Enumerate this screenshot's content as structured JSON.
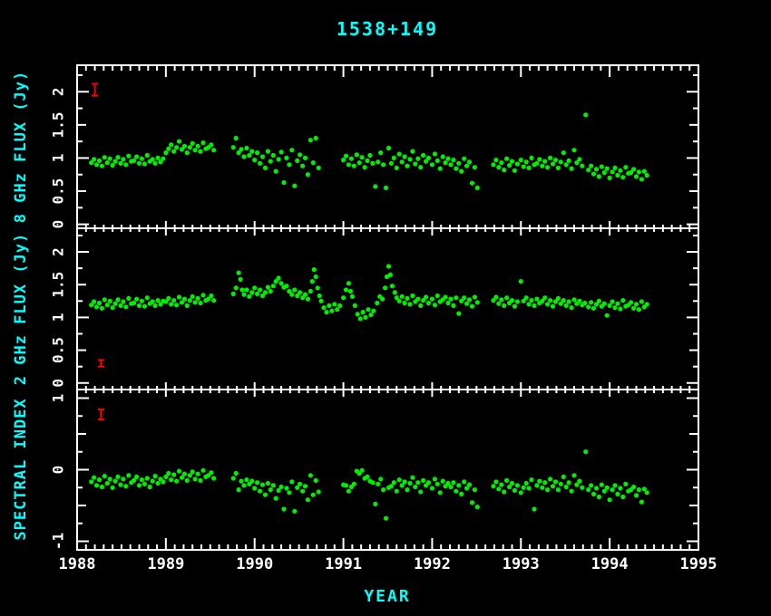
{
  "colors": {
    "background": "#000000",
    "frame": "#ffffff",
    "tick_text": "#ffffff",
    "label_text": "#00ffff",
    "point": "#00ee00",
    "error_bar": "#ff0000"
  },
  "chart_data": {
    "type": "scatter",
    "title": "1538+149",
    "xlabel": "YEAR",
    "xlim": [
      1988,
      1995
    ],
    "x_minor_step": 0.1,
    "x_tick_years": [
      1988,
      1989,
      1990,
      1991,
      1992,
      1993,
      1994,
      1995
    ],
    "x_tick_labels": [
      "1988",
      "1989",
      "1990",
      "1991",
      "1992",
      "1993",
      "1994",
      "1995"
    ],
    "time_grids": {
      "grid_a": [
        1988.16,
        1988.19,
        1988.22,
        1988.25,
        1988.28,
        1988.31,
        1988.34,
        1988.37,
        1988.4,
        1988.43,
        1988.46,
        1988.49,
        1988.52,
        1988.55,
        1988.58,
        1988.61,
        1988.64,
        1988.67,
        1988.7,
        1988.73,
        1988.76,
        1988.79,
        1988.82,
        1988.85,
        1988.88,
        1988.91,
        1988.94,
        1988.97,
        1989.0,
        1989.03,
        1989.06,
        1989.09,
        1989.12,
        1989.15,
        1989.18,
        1989.21,
        1989.24,
        1989.27,
        1989.3,
        1989.33,
        1989.36,
        1989.39,
        1989.42,
        1989.45,
        1989.48,
        1989.51,
        1989.54,
        1989.76,
        1989.79,
        1989.82,
        1989.85,
        1989.88,
        1989.91,
        1989.94,
        1989.97,
        1990.0,
        1990.03,
        1990.06,
        1990.09,
        1990.12,
        1990.15,
        1990.18,
        1990.21,
        1990.24,
        1990.27,
        1990.3,
        1990.33,
        1990.36,
        1990.39,
        1990.42,
        1990.45,
        1990.48,
        1990.51,
        1990.54,
        1990.57,
        1990.6,
        1990.63,
        1990.66,
        1990.69,
        1990.72,
        1991.0,
        1991.03,
        1991.06,
        1991.09,
        1991.12,
        1991.15,
        1991.18,
        1991.21,
        1991.24,
        1991.27,
        1991.3,
        1991.33,
        1991.36,
        1991.39,
        1991.42,
        1991.45,
        1991.48,
        1991.51,
        1991.54,
        1991.57,
        1991.6,
        1991.63,
        1991.66,
        1991.69,
        1991.72,
        1991.75,
        1991.78,
        1991.81,
        1991.84,
        1991.87,
        1991.9,
        1991.93,
        1991.96,
        1992.0,
        1992.03,
        1992.06,
        1992.09,
        1992.12,
        1992.15,
        1992.18,
        1992.21,
        1992.24,
        1992.27,
        1992.3,
        1992.33,
        1992.36,
        1992.39,
        1992.42,
        1992.45,
        1992.48,
        1992.51,
        1992.69,
        1992.72,
        1992.75,
        1992.78,
        1992.81,
        1992.84,
        1992.87,
        1992.9,
        1992.93,
        1992.96,
        1993.0,
        1993.03,
        1993.06,
        1993.09,
        1993.12,
        1993.15,
        1993.18,
        1993.21,
        1993.24,
        1993.27,
        1993.3,
        1993.33,
        1993.36,
        1993.39,
        1993.42,
        1993.45,
        1993.48,
        1993.51,
        1993.54,
        1993.57,
        1993.6,
        1993.63,
        1993.66,
        1993.69,
        1993.73,
        1993.76,
        1993.79,
        1993.82,
        1993.85,
        1993.88,
        1993.91,
        1993.94,
        1993.97,
        1994.0,
        1994.03,
        1994.06,
        1994.09,
        1994.12,
        1994.15,
        1994.18,
        1994.21,
        1994.24,
        1994.27,
        1994.3,
        1994.33,
        1994.36,
        1994.39,
        1994.42
      ],
      "grid_b": [
        1988.16,
        1988.19,
        1988.22,
        1988.25,
        1988.28,
        1988.31,
        1988.34,
        1988.37,
        1988.4,
        1988.43,
        1988.46,
        1988.49,
        1988.52,
        1988.55,
        1988.58,
        1988.61,
        1988.64,
        1988.67,
        1988.7,
        1988.73,
        1988.76,
        1988.79,
        1988.82,
        1988.85,
        1988.88,
        1988.91,
        1988.94,
        1988.97,
        1989.0,
        1989.03,
        1989.06,
        1989.09,
        1989.12,
        1989.15,
        1989.18,
        1989.21,
        1989.24,
        1989.27,
        1989.3,
        1989.33,
        1989.36,
        1989.39,
        1989.42,
        1989.45,
        1989.48,
        1989.51,
        1989.54,
        1989.76,
        1989.79,
        1989.82,
        1989.84,
        1989.86,
        1989.88,
        1989.91,
        1989.94,
        1989.97,
        1990.0,
        1990.03,
        1990.06,
        1990.09,
        1990.12,
        1990.15,
        1990.18,
        1990.21,
        1990.24,
        1990.27,
        1990.3,
        1990.33,
        1990.36,
        1990.39,
        1990.42,
        1990.45,
        1990.48,
        1990.51,
        1990.54,
        1990.57,
        1990.6,
        1990.63,
        1990.65,
        1990.67,
        1990.69,
        1990.71,
        1990.73,
        1990.75,
        1990.78,
        1990.81,
        1990.84,
        1990.87,
        1990.9,
        1990.93,
        1990.96,
        1991.0,
        1991.03,
        1991.06,
        1991.08,
        1991.1,
        1991.13,
        1991.16,
        1991.19,
        1991.22,
        1991.25,
        1991.28,
        1991.31,
        1991.34,
        1991.38,
        1991.41,
        1991.44,
        1991.47,
        1991.49,
        1991.51,
        1991.53,
        1991.55,
        1991.58,
        1991.6,
        1991.63,
        1991.66,
        1991.69,
        1991.72,
        1991.75,
        1991.78,
        1991.81,
        1991.84,
        1991.87,
        1991.9,
        1991.93,
        1991.96,
        1992.0,
        1992.03,
        1992.06,
        1992.09,
        1992.12,
        1992.15,
        1992.18,
        1992.21,
        1992.24,
        1992.27,
        1992.3,
        1992.33,
        1992.36,
        1992.39,
        1992.42,
        1992.45,
        1992.48,
        1992.51,
        1992.69,
        1992.72,
        1992.75,
        1992.78,
        1992.81,
        1992.84,
        1992.87,
        1992.9,
        1992.93,
        1992.96,
        1993.0,
        1993.03,
        1993.06,
        1993.09,
        1993.12,
        1993.15,
        1993.18,
        1993.21,
        1993.24,
        1993.27,
        1993.3,
        1993.33,
        1993.36,
        1993.39,
        1993.42,
        1993.45,
        1993.48,
        1993.51,
        1993.54,
        1993.57,
        1993.6,
        1993.63,
        1993.66,
        1993.69,
        1993.72,
        1993.76,
        1993.79,
        1993.82,
        1993.85,
        1993.88,
        1993.91,
        1993.94,
        1993.97,
        1994.0,
        1994.03,
        1994.06,
        1994.09,
        1994.12,
        1994.15,
        1994.18,
        1994.21,
        1994.24,
        1994.27,
        1994.3,
        1994.33,
        1994.36,
        1994.39,
        1994.42
      ]
    },
    "panels": [
      {
        "ylabel": "8 GHz FLUX (Jy)",
        "ylim": [
          -0.06,
          2.4
        ],
        "yticks": [
          0,
          0.5,
          1,
          1.5,
          2
        ],
        "ytick_labels": [
          "0",
          "0.5",
          "1",
          "1.5",
          "2"
        ],
        "y_minor_step": 0.25,
        "error_bar": {
          "x": 1988.2,
          "value": 2.03,
          "error": 0.09
        },
        "time_grid": "grid_a",
        "values": [
          0.93,
          0.98,
          0.9,
          0.96,
          0.88,
          1.01,
          0.93,
          0.99,
          0.89,
          0.95,
          1.01,
          0.92,
          0.98,
          0.9,
          1.03,
          0.95,
          0.96,
          1.02,
          0.92,
          0.99,
          0.91,
          1.04,
          0.95,
          0.98,
          0.92,
          1.0,
          0.94,
          0.99,
          1.08,
          1.14,
          1.2,
          1.1,
          1.16,
          1.25,
          1.13,
          1.18,
          1.08,
          1.16,
          1.22,
          1.12,
          1.18,
          1.1,
          1.23,
          1.14,
          1.16,
          1.2,
          1.12,
          1.16,
          1.3,
          1.08,
          1.13,
          1.02,
          1.15,
          1.04,
          1.1,
          0.97,
          1.08,
          0.92,
          1.02,
          0.85,
          1.1,
          0.95,
          1.04,
          0.8,
          0.98,
          1.09,
          0.63,
          1.0,
          0.9,
          1.12,
          0.58,
          0.96,
          1.05,
          0.88,
          1.0,
          0.75,
          1.27,
          0.93,
          1.3,
          0.85,
          0.97,
          1.03,
          0.9,
          0.99,
          0.88,
          1.05,
          0.93,
          1.01,
          0.86,
          0.96,
          1.04,
          0.92,
          0.57,
          0.94,
          1.08,
          0.9,
          0.55,
          1.15,
          0.92,
          1.0,
          0.85,
          1.06,
          0.94,
          1.02,
          0.88,
          0.98,
          1.1,
          0.91,
          0.99,
          0.86,
          1.04,
          0.95,
          1.0,
          0.9,
          1.06,
          0.96,
          0.84,
          1.02,
          0.93,
          0.99,
          0.9,
          0.97,
          0.84,
          0.92,
          0.8,
          0.99,
          0.88,
          0.94,
          0.62,
          0.86,
          0.55,
          0.9,
          0.97,
          0.86,
          0.93,
          0.82,
          0.99,
          0.89,
          0.95,
          0.81,
          0.91,
          0.97,
          0.87,
          0.94,
          0.85,
          1.0,
          0.9,
          0.92,
          0.98,
          0.88,
          0.95,
          0.86,
          1.0,
          0.91,
          0.97,
          0.85,
          0.94,
          1.08,
          0.9,
          0.96,
          0.84,
          1.12,
          0.93,
          0.98,
          0.88,
          1.65,
          0.82,
          0.88,
          0.76,
          0.83,
          0.72,
          0.87,
          0.78,
          0.84,
          0.7,
          0.79,
          0.85,
          0.74,
          0.81,
          0.71,
          0.86,
          0.77,
          0.78,
          0.83,
          0.72,
          0.79,
          0.68,
          0.8,
          0.74
        ]
      },
      {
        "ylabel": "2 GHz FLUX (Jy)",
        "ylim": [
          -0.1,
          2.36
        ],
        "yticks": [
          0,
          0.5,
          1,
          1.5,
          2
        ],
        "ytick_labels": [
          "0",
          "0.5",
          "1",
          "1.5",
          "2"
        ],
        "y_minor_step": 0.25,
        "error_bar": {
          "x": 1988.27,
          "value": 0.3,
          "error": 0.05
        },
        "time_grid": "grid_b",
        "values": [
          1.19,
          1.24,
          1.16,
          1.22,
          1.14,
          1.27,
          1.19,
          1.25,
          1.15,
          1.21,
          1.27,
          1.18,
          1.24,
          1.16,
          1.29,
          1.21,
          1.22,
          1.28,
          1.18,
          1.25,
          1.17,
          1.3,
          1.21,
          1.24,
          1.18,
          1.26,
          1.2,
          1.25,
          1.24,
          1.29,
          1.2,
          1.26,
          1.19,
          1.31,
          1.23,
          1.28,
          1.18,
          1.26,
          1.32,
          1.23,
          1.29,
          1.22,
          1.34,
          1.26,
          1.28,
          1.33,
          1.26,
          1.36,
          1.45,
          1.68,
          1.58,
          1.42,
          1.35,
          1.42,
          1.32,
          1.38,
          1.45,
          1.36,
          1.42,
          1.33,
          1.38,
          1.46,
          1.4,
          1.48,
          1.55,
          1.6,
          1.52,
          1.46,
          1.48,
          1.4,
          1.35,
          1.42,
          1.33,
          1.38,
          1.3,
          1.35,
          1.28,
          1.4,
          1.55,
          1.73,
          1.62,
          1.45,
          1.33,
          1.25,
          1.15,
          1.08,
          1.18,
          1.1,
          1.2,
          1.12,
          1.18,
          1.3,
          1.42,
          1.52,
          1.4,
          1.32,
          1.18,
          1.05,
          0.98,
          1.08,
          1.0,
          1.12,
          1.04,
          1.1,
          1.22,
          1.32,
          1.28,
          1.45,
          1.62,
          1.78,
          1.65,
          1.48,
          1.38,
          1.3,
          1.25,
          1.32,
          1.22,
          1.29,
          1.2,
          1.33,
          1.24,
          1.28,
          1.18,
          1.26,
          1.31,
          1.22,
          1.28,
          1.19,
          1.33,
          1.24,
          1.27,
          1.31,
          1.22,
          1.28,
          1.18,
          1.3,
          1.06,
          1.25,
          1.3,
          1.21,
          1.27,
          1.17,
          1.31,
          1.23,
          1.26,
          1.31,
          1.21,
          1.27,
          1.18,
          1.3,
          1.22,
          1.26,
          1.17,
          1.24,
          1.55,
          1.25,
          1.3,
          1.2,
          1.26,
          1.18,
          1.28,
          1.22,
          1.25,
          1.3,
          1.2,
          1.26,
          1.17,
          1.24,
          1.29,
          1.21,
          1.26,
          1.18,
          1.24,
          1.15,
          1.27,
          1.21,
          1.25,
          1.19,
          1.22,
          1.16,
          1.23,
          1.14,
          1.2,
          1.25,
          1.17,
          1.21,
          1.03,
          1.18,
          1.24,
          1.15,
          1.21,
          1.13,
          1.26,
          1.17,
          1.19,
          1.23,
          1.14,
          1.2,
          1.12,
          1.24,
          1.16,
          1.2
        ]
      },
      {
        "ylabel": "SPECTRAL INDEX",
        "ylim": [
          -1.12,
          1.12
        ],
        "yticks": [
          -1,
          0,
          1
        ],
        "ytick_labels": [
          "-1",
          "0",
          "1"
        ],
        "y_minor_step": 0.25,
        "error_bar": {
          "x": 1988.27,
          "value": 0.77,
          "error": 0.07
        },
        "time_grid": "grid_a",
        "values": [
          -0.17,
          -0.11,
          -0.22,
          -0.14,
          -0.24,
          -0.09,
          -0.19,
          -0.13,
          -0.25,
          -0.16,
          -0.1,
          -0.21,
          -0.13,
          -0.23,
          -0.08,
          -0.18,
          -0.15,
          -0.1,
          -0.22,
          -0.14,
          -0.2,
          -0.12,
          -0.24,
          -0.16,
          -0.09,
          -0.19,
          -0.13,
          -0.17,
          -0.1,
          -0.05,
          -0.14,
          -0.07,
          -0.16,
          -0.02,
          -0.11,
          -0.06,
          -0.15,
          -0.08,
          -0.03,
          -0.13,
          -0.06,
          -0.15,
          -0.01,
          -0.1,
          -0.08,
          -0.04,
          -0.12,
          -0.12,
          -0.05,
          -0.28,
          -0.16,
          -0.22,
          -0.14,
          -0.2,
          -0.16,
          -0.26,
          -0.18,
          -0.3,
          -0.21,
          -0.35,
          -0.19,
          -0.28,
          -0.22,
          -0.4,
          -0.29,
          -0.24,
          -0.55,
          -0.26,
          -0.32,
          -0.17,
          -0.58,
          -0.25,
          -0.2,
          -0.3,
          -0.23,
          -0.42,
          -0.08,
          -0.35,
          -0.15,
          -0.31,
          -0.21,
          -0.22,
          -0.3,
          -0.24,
          -0.2,
          -0.02,
          -0.05,
          -0.01,
          -0.12,
          -0.1,
          -0.16,
          -0.18,
          -0.48,
          -0.2,
          -0.13,
          -0.28,
          -0.68,
          -0.25,
          -0.23,
          -0.18,
          -0.3,
          -0.14,
          -0.22,
          -0.17,
          -0.28,
          -0.19,
          -0.11,
          -0.24,
          -0.18,
          -0.31,
          -0.15,
          -0.22,
          -0.18,
          -0.26,
          -0.13,
          -0.2,
          -0.32,
          -0.16,
          -0.23,
          -0.19,
          -0.24,
          -0.18,
          -0.3,
          -0.22,
          -0.34,
          -0.17,
          -0.26,
          -0.21,
          -0.46,
          -0.28,
          -0.52,
          -0.23,
          -0.17,
          -0.27,
          -0.21,
          -0.31,
          -0.15,
          -0.24,
          -0.19,
          -0.29,
          -0.22,
          -0.32,
          -0.25,
          -0.19,
          -0.26,
          -0.14,
          -0.55,
          -0.22,
          -0.16,
          -0.25,
          -0.18,
          -0.28,
          -0.13,
          -0.23,
          -0.17,
          -0.28,
          -0.2,
          -0.1,
          -0.24,
          -0.18,
          -0.3,
          -0.08,
          -0.21,
          -0.16,
          -0.25,
          0.25,
          -0.28,
          -0.22,
          -0.34,
          -0.26,
          -0.38,
          -0.21,
          -0.3,
          -0.25,
          -0.42,
          -0.28,
          -0.22,
          -0.34,
          -0.26,
          -0.38,
          -0.2,
          -0.3,
          -0.28,
          -0.24,
          -0.36,
          -0.28,
          -0.45,
          -0.27,
          -0.32
        ]
      }
    ]
  }
}
